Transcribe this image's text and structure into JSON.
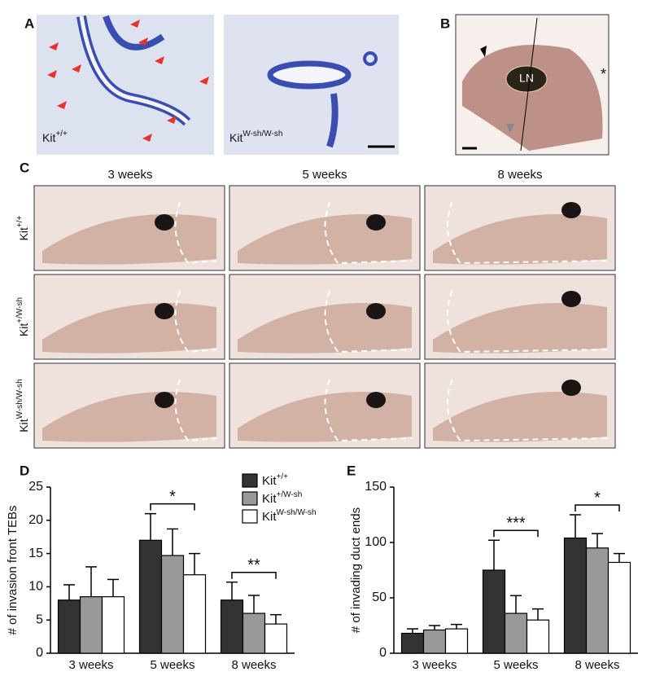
{
  "panel_labels": [
    "A",
    "B",
    "C",
    "D",
    "E"
  ],
  "panel_a": {
    "genotypes": [
      {
        "base": "Kit",
        "sup": "+/+"
      },
      {
        "base": "Kit",
        "sup": "W-sh/W-sh"
      }
    ]
  },
  "panel_b": {
    "node_label": "LN",
    "marker": "*"
  },
  "panel_c": {
    "columns": [
      "3 weeks",
      "5 weeks",
      "8 weeks"
    ],
    "rows": [
      {
        "base": "Kit",
        "sup": "+/+"
      },
      {
        "base": "Kit",
        "sup": "+/W-sh"
      },
      {
        "base": "Kit",
        "sup": "W-sh/W-sh"
      }
    ]
  },
  "chart_data": [
    {
      "type": "bar",
      "y_label": "# of invasion front TEBs",
      "categories": [
        "3 weeks",
        "5 weeks",
        "8 weeks"
      ],
      "series": [
        {
          "name": "Kit",
          "name_sup": "+/+",
          "color": "#333333",
          "values": [
            8.0,
            17.0,
            8.0
          ],
          "errors": [
            2.3,
            4.0,
            2.7
          ]
        },
        {
          "name": "Kit",
          "name_sup": "+/W-sh",
          "color": "#999999",
          "values": [
            8.5,
            14.7,
            6.0
          ],
          "errors": [
            4.5,
            4.0,
            2.7
          ]
        },
        {
          "name": "Kit",
          "name_sup": "W-sh/W-sh",
          "color": "#ffffff",
          "values": [
            8.5,
            11.8,
            4.4
          ],
          "errors": [
            2.6,
            3.2,
            1.4
          ]
        }
      ],
      "ylim": [
        0,
        25
      ],
      "yticks": [
        0,
        5,
        10,
        15,
        20,
        25
      ],
      "legend": "top-right",
      "annotations": [
        {
          "text": "*",
          "category": "5 weeks"
        },
        {
          "text": "**",
          "category": "8 weeks"
        }
      ]
    },
    {
      "type": "bar",
      "y_label": "# of invading duct ends",
      "categories": [
        "3 weeks",
        "5 weeks",
        "8 weeks"
      ],
      "series": [
        {
          "color": "#333333",
          "values": [
            18,
            75,
            104
          ],
          "errors": [
            4,
            27,
            21
          ]
        },
        {
          "color": "#999999",
          "values": [
            21,
            36,
            95
          ],
          "errors": [
            4,
            16,
            13
          ]
        },
        {
          "color": "#ffffff",
          "values": [
            22,
            30,
            82
          ],
          "errors": [
            4,
            10,
            8
          ]
        }
      ],
      "ylim": [
        0,
        150
      ],
      "yticks": [
        0,
        50,
        100,
        150
      ],
      "annotations": [
        {
          "text": "***",
          "category": "5 weeks"
        },
        {
          "text": "*",
          "category": "8 weeks"
        }
      ]
    }
  ]
}
